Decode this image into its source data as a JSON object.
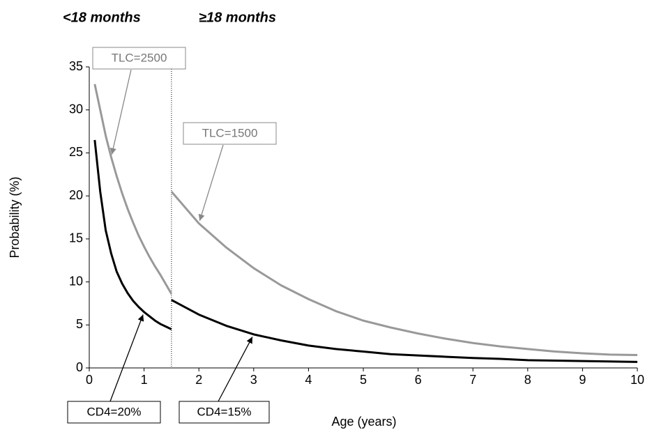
{
  "chart_data": {
    "type": "line",
    "annotations": [
      "<18 months",
      "≥18 months"
    ],
    "xlabel": "Age (years)",
    "ylabel": "Probability (%)",
    "xlim": [
      0,
      10
    ],
    "ylim": [
      0,
      35
    ],
    "xticks": [
      0,
      1,
      2,
      3,
      4,
      5,
      6,
      7,
      8,
      9,
      10
    ],
    "yticks": [
      0,
      5,
      10,
      15,
      20,
      25,
      30,
      35
    ],
    "vline_x": 1.5,
    "grid": false,
    "series": [
      {
        "name": "TLC=2500",
        "color": "#999999",
        "x": [
          0.1,
          0.2,
          0.3,
          0.4,
          0.5,
          0.6,
          0.7,
          0.8,
          0.9,
          1.0,
          1.1,
          1.2,
          1.3,
          1.4,
          1.5
        ],
        "values": [
          33,
          30,
          27,
          24.5,
          22.3,
          20.3,
          18.5,
          16.9,
          15.4,
          14.1,
          12.9,
          11.8,
          10.8,
          9.7,
          8.6
        ]
      },
      {
        "name": "TLC=1500",
        "color": "#999999",
        "x": [
          1.5,
          2,
          2.5,
          3,
          3.5,
          4,
          4.5,
          5,
          5.5,
          6,
          6.5,
          7,
          7.5,
          8,
          8.5,
          9,
          9.5,
          10
        ],
        "values": [
          20.5,
          16.8,
          14,
          11.6,
          9.6,
          8,
          6.6,
          5.5,
          4.7,
          4,
          3.4,
          2.9,
          2.5,
          2.2,
          1.9,
          1.7,
          1.55,
          1.5
        ]
      },
      {
        "name": "CD4=20%",
        "color": "#000000",
        "x": [
          0.1,
          0.2,
          0.3,
          0.4,
          0.5,
          0.6,
          0.7,
          0.8,
          0.9,
          1.0,
          1.1,
          1.2,
          1.3,
          1.4,
          1.5
        ],
        "values": [
          26.5,
          20.5,
          16,
          13.3,
          11.2,
          9.8,
          8.7,
          7.8,
          7.1,
          6.5,
          6.0,
          5.5,
          5.1,
          4.8,
          4.5
        ]
      },
      {
        "name": "CD4=15%",
        "color": "#000000",
        "x": [
          1.5,
          2,
          2.5,
          3,
          3.5,
          4,
          4.5,
          5,
          5.5,
          6,
          6.5,
          7,
          7.5,
          8,
          8.5,
          9,
          9.5,
          10
        ],
        "values": [
          7.9,
          6.2,
          4.9,
          3.9,
          3.2,
          2.6,
          2.2,
          1.9,
          1.6,
          1.45,
          1.3,
          1.15,
          1.05,
          0.9,
          0.85,
          0.8,
          0.75,
          0.7
        ]
      }
    ]
  }
}
